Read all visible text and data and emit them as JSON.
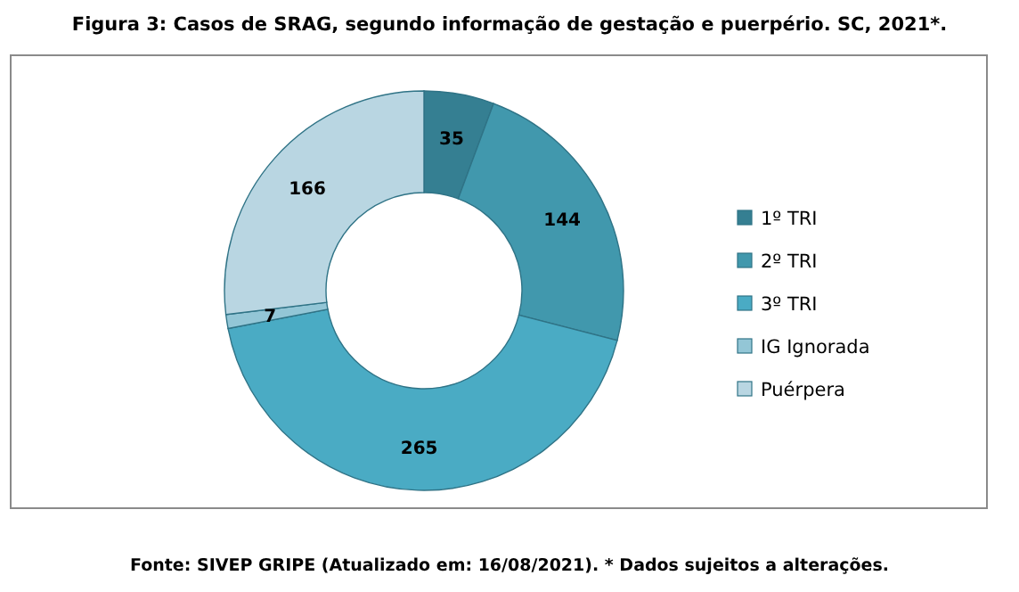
{
  "chart_data": {
    "type": "donut",
    "title": "Figura 3: Casos de SRAG, segundo informação de gestação e puerpério. SC, 2021*.",
    "categories": [
      "1º TRI",
      "2º TRI",
      "3º TRI",
      "IG Ignorada",
      "Puérpera"
    ],
    "values": [
      35,
      144,
      265,
      7,
      166
    ],
    "colors": [
      "#357f92",
      "#4198ad",
      "#4aabc4",
      "#93c6d6",
      "#b9d6e2"
    ],
    "data_labels": true,
    "legend": "right",
    "annotations": [
      "Fonte: SIVEP GRIPE (Atualizado em: 16/08/2021). * Dados sujeitos a alterações."
    ]
  }
}
